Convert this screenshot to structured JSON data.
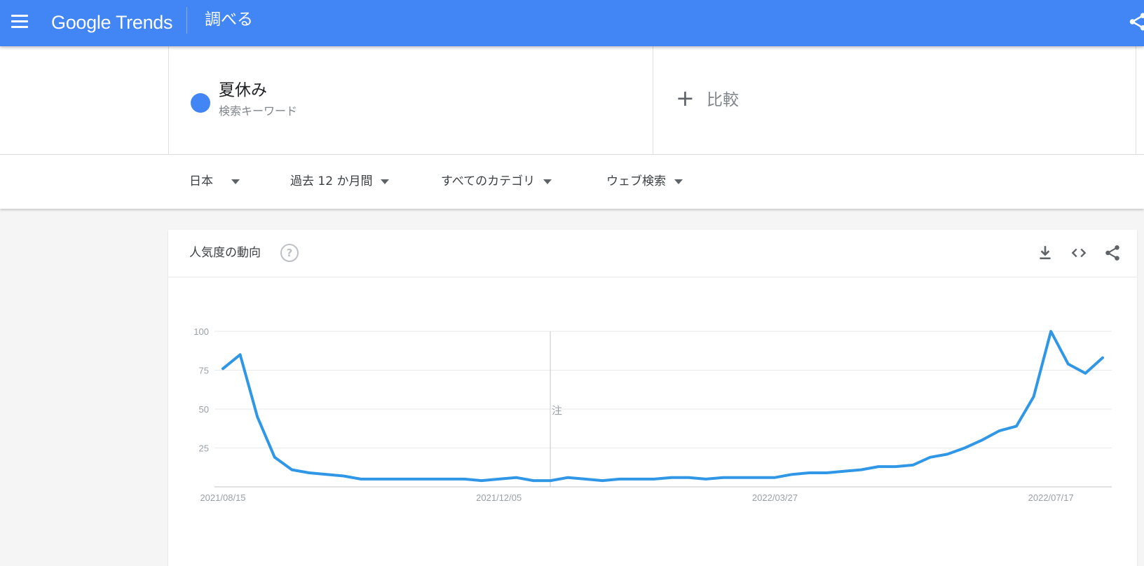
{
  "topbar": {
    "logo": "Google Trends",
    "page_title": "調べる",
    "menu_icon": "hamburger-icon",
    "share_icon": "share-icon",
    "color": "#4285f4"
  },
  "search_term": {
    "name": "夏休み",
    "type": "検索キーワード",
    "color": "#4285f4"
  },
  "compare": {
    "plus": "+",
    "label": "比較"
  },
  "filters": [
    {
      "label": "日本"
    },
    {
      "label": "過去 12 か月間"
    },
    {
      "label": "すべてのカテゴリ"
    },
    {
      "label": "ウェブ検索"
    }
  ],
  "card": {
    "title": "人気度の動向",
    "help": "?",
    "icons": [
      "download-icon",
      "embed-code-icon",
      "share-icon"
    ]
  },
  "chart_data": {
    "type": "line",
    "ylim": [
      0,
      100
    ],
    "y_ticks": [
      25,
      50,
      75,
      100
    ],
    "x_tick_labels": [
      "2021/08/15",
      "2021/12/05",
      "2022/03/27",
      "2022/07/17"
    ],
    "x_tick_indices": [
      0,
      16,
      32,
      48
    ],
    "grid": true,
    "marker_index": 19,
    "marker_label": "注",
    "color": "#2f97e6",
    "series": [
      {
        "values": [
          76,
          85,
          45,
          19,
          11,
          9,
          8,
          7,
          5,
          5,
          5,
          5,
          5,
          5,
          5,
          4,
          5,
          6,
          4,
          4,
          6,
          5,
          4,
          5,
          5,
          5,
          6,
          6,
          5,
          6,
          6,
          6,
          6,
          8,
          9,
          9,
          10,
          11,
          13,
          13,
          14,
          19,
          21,
          25,
          30,
          36,
          39,
          58,
          100,
          79,
          73,
          83
        ]
      }
    ]
  }
}
